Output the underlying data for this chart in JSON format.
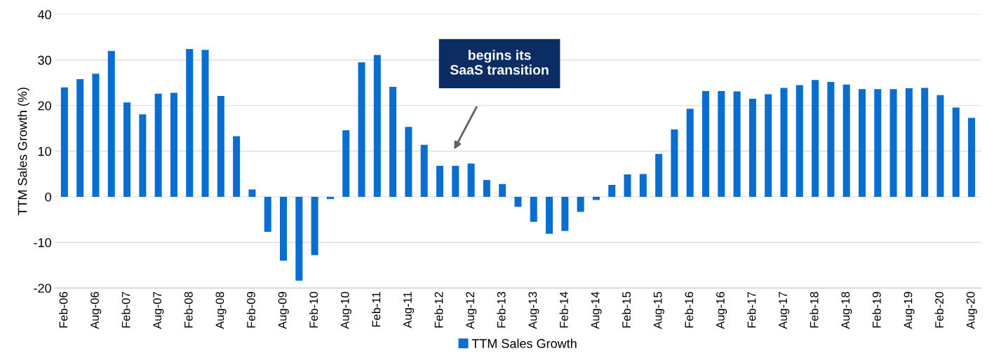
{
  "chart_data": {
    "type": "bar",
    "ylabel": "TTM Sales Growth (%)",
    "categories": [
      "Feb-06",
      null,
      "Aug-06",
      null,
      "Feb-07",
      null,
      "Aug-07",
      null,
      "Feb-08",
      null,
      "Aug-08",
      null,
      "Feb-09",
      null,
      "Aug-09",
      null,
      "Feb-10",
      null,
      "Aug-10",
      null,
      "Feb-11",
      null,
      "Aug-11",
      null,
      "Feb-12",
      null,
      "Aug-12",
      null,
      "Feb-13",
      null,
      "Aug-13",
      null,
      "Feb-14",
      null,
      "Aug-14",
      null,
      "Feb-15",
      null,
      "Aug-15",
      null,
      "Feb-16",
      null,
      "Aug-16",
      null,
      "Feb-17",
      null,
      "Aug-17",
      null,
      "Feb-18",
      null,
      "Aug-18",
      null,
      "Feb-19",
      null,
      "Aug-19",
      null,
      "Feb-20",
      null,
      "Aug-20"
    ],
    "series": [
      {
        "name": "TTM Sales Growth",
        "color": "#0a6ed1",
        "values": [
          24,
          25.8,
          27,
          32,
          20.7,
          18.1,
          22.6,
          22.8,
          32.4,
          32.2,
          22.1,
          13.3,
          1.6,
          -7.7,
          -14,
          -18.4,
          -12.8,
          -0.5,
          14.6,
          29.5,
          31.1,
          24.1,
          15.3,
          11.4,
          6.8,
          6.8,
          7.3,
          3.7,
          2.8,
          -2.2,
          -5.5,
          -8.1,
          -7.5,
          -3.3,
          -0.7,
          2.6,
          4.9,
          5.0,
          9.4,
          14.8,
          19.3,
          23.2,
          23.2,
          23.1,
          21.5,
          22.5,
          23.9,
          24.5,
          25.6,
          25.2,
          24.6,
          23.6,
          23.6,
          23.6,
          23.8,
          23.9,
          22.3,
          19.6,
          17.3
        ]
      }
    ],
    "ylim": [
      -20,
      40
    ],
    "yticks": [
      -20,
      -10,
      0,
      10,
      20,
      30,
      40
    ],
    "grid": "y",
    "legend": "bottom",
    "annotations": [
      "begins its\nSaaS transition"
    ]
  }
}
